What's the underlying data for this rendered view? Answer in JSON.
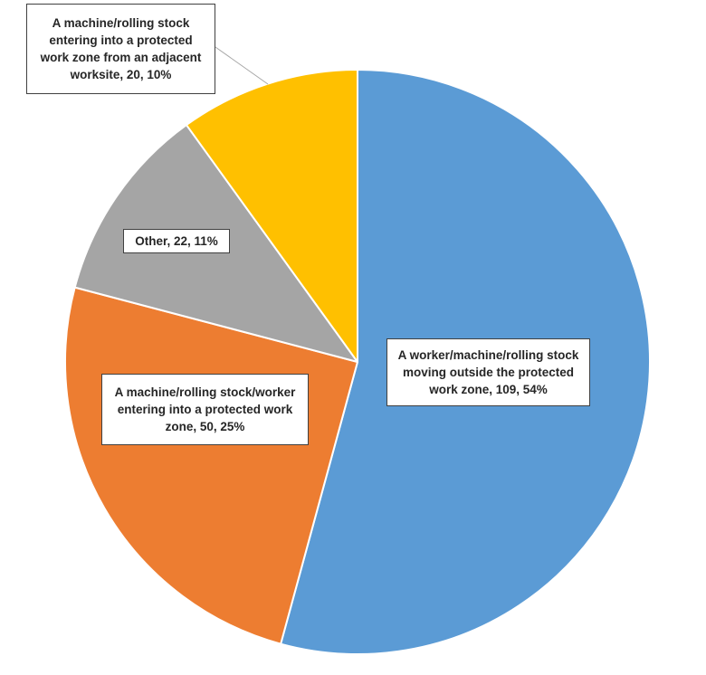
{
  "chart_data": {
    "type": "pie",
    "title": "",
    "start_angle_deg": 0,
    "direction": "clockwise",
    "slices": [
      {
        "label": "A worker/machine/rolling stock moving outside the protected work zone",
        "value": 109,
        "percent": "54%",
        "color": "#5B9BD5",
        "data_label_lines": [
          "A worker/machine/rolling stock",
          "moving outside the protected",
          "work zone, 109, 54%"
        ]
      },
      {
        "label": "A machine/rolling stock/worker entering into a protected work zone",
        "value": 50,
        "percent": "25%",
        "color": "#ED7D31",
        "data_label_lines": [
          "A machine/rolling stock/worker",
          "entering into a protected work",
          "zone, 50, 25%"
        ]
      },
      {
        "label": "Other",
        "value": 22,
        "percent": "11%",
        "color": "#A5A5A5",
        "data_label_lines": [
          "Other, 22, 11%"
        ]
      },
      {
        "label": "A machine/rolling stock entering into a protected work zone from an adjacent worksite",
        "value": 20,
        "percent": "10%",
        "color": "#FFC000",
        "data_label_lines": [
          "A machine/rolling stock",
          "entering into a protected",
          "work zone from an adjacent",
          "worksite, 20, 10%"
        ]
      }
    ],
    "slice_border_color": "#FFFFFF",
    "label_border_color": "#404040",
    "leader_line_color": "#A6A6A6"
  }
}
